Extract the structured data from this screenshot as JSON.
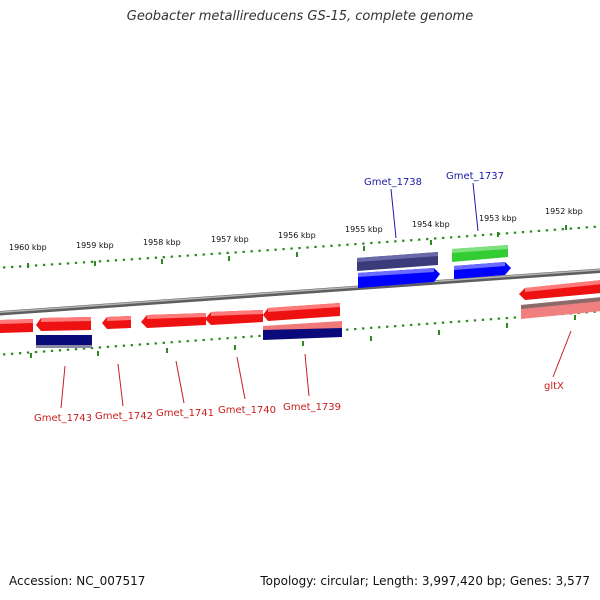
{
  "title": "Geobacter metallireducens GS-15, complete genome",
  "footer": {
    "accession": "Accession: NC_007517",
    "summary": "Topology: circular; Length: 3,997,420 bp; Genes: 3,577"
  },
  "colors": {
    "backbone": "#8a8a8a",
    "tick": "#2e8b22",
    "forward_label": "#1a1aa8",
    "reverse_label": "#c81e1e"
  },
  "scale_ticks": [
    "1960 kbp",
    "1959 kbp",
    "1958 kbp",
    "1957 kbp",
    "1956 kbp",
    "1955 kbp",
    "1954 kbp",
    "1953 kbp",
    "1952 kbp"
  ],
  "genes": {
    "forward": [
      "Gmet_1738",
      "Gmet_1737"
    ],
    "reverse": [
      "Gmet_1743",
      "Gmet_1742",
      "Gmet_1741",
      "Gmet_1740",
      "Gmet_1739",
      "gltX"
    ]
  }
}
